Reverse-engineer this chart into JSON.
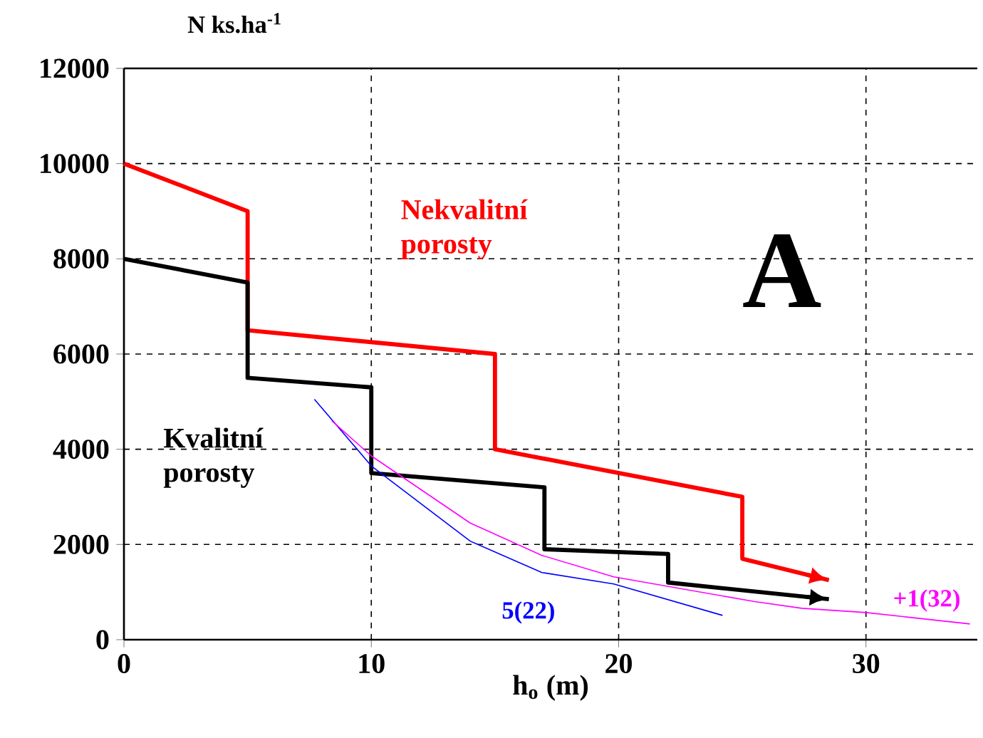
{
  "chart_data": {
    "type": "line",
    "xlabel": "h$_{o}$ (m)",
    "ylabel": "N ks.ha$^{-1}$",
    "xlim": [
      0,
      34.5
    ],
    "ylim": [
      0,
      12000
    ],
    "xticks": [
      0,
      10,
      20,
      30
    ],
    "yticks": [
      0,
      2000,
      4000,
      6000,
      8000,
      10000,
      12000
    ],
    "grid": true,
    "annotations": [
      "A"
    ],
    "series": [
      {
        "name": "Nekvalitní porosty",
        "color": "#ff0000",
        "x": [
          0,
          5,
          5,
          15,
          15,
          25,
          25,
          28.5
        ],
        "values": [
          10000,
          9000,
          6500,
          6000,
          4000,
          3000,
          1700,
          1250
        ]
      },
      {
        "name": "Kvalitní porosty",
        "color": "#000000",
        "x": [
          0,
          5,
          5,
          10,
          10,
          17,
          17,
          22,
          22,
          28.5
        ],
        "values": [
          8000,
          7500,
          5500,
          5300,
          3500,
          3200,
          1900,
          1800,
          1200,
          850
        ]
      },
      {
        "name": "5(22)",
        "color": "#0000ff",
        "x": [
          7.7,
          10,
          14,
          16.9,
          19.8,
          24.2
        ],
        "values": [
          5050,
          3650,
          2070,
          1410,
          1170,
          510
        ]
      },
      {
        "name": "+1(32)",
        "color": "#ff00ff",
        "x": [
          8.4,
          10,
          14,
          16.9,
          19.8,
          25.5,
          27.4,
          30,
          34.2
        ],
        "values": [
          4600,
          3860,
          2450,
          1770,
          1320,
          800,
          660,
          570,
          330
        ]
      }
    ]
  }
}
